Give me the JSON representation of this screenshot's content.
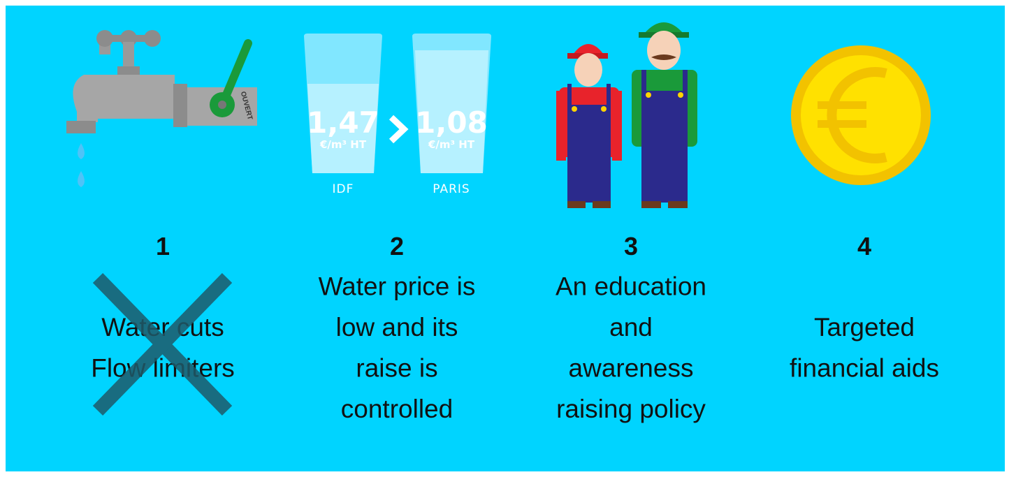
{
  "illustrations": {
    "tap_label": "OUVERT",
    "glasses": [
      {
        "price": "1,47",
        "unit": "€/m³ HT",
        "region": "IDF"
      },
      {
        "price": "1,08",
        "unit": "€/m³ HT",
        "region": "PARIS"
      }
    ]
  },
  "items": [
    {
      "number": "1",
      "lines": [
        "Water cuts",
        "Flow limiters"
      ]
    },
    {
      "number": "2",
      "lines": [
        "Water price is",
        "low and its",
        "raise is",
        "controlled"
      ]
    },
    {
      "number": "3",
      "lines": [
        "An education",
        "and",
        "awareness",
        "raising policy"
      ]
    },
    {
      "number": "4",
      "lines": [
        "Targeted",
        "financial aids"
      ]
    }
  ]
}
